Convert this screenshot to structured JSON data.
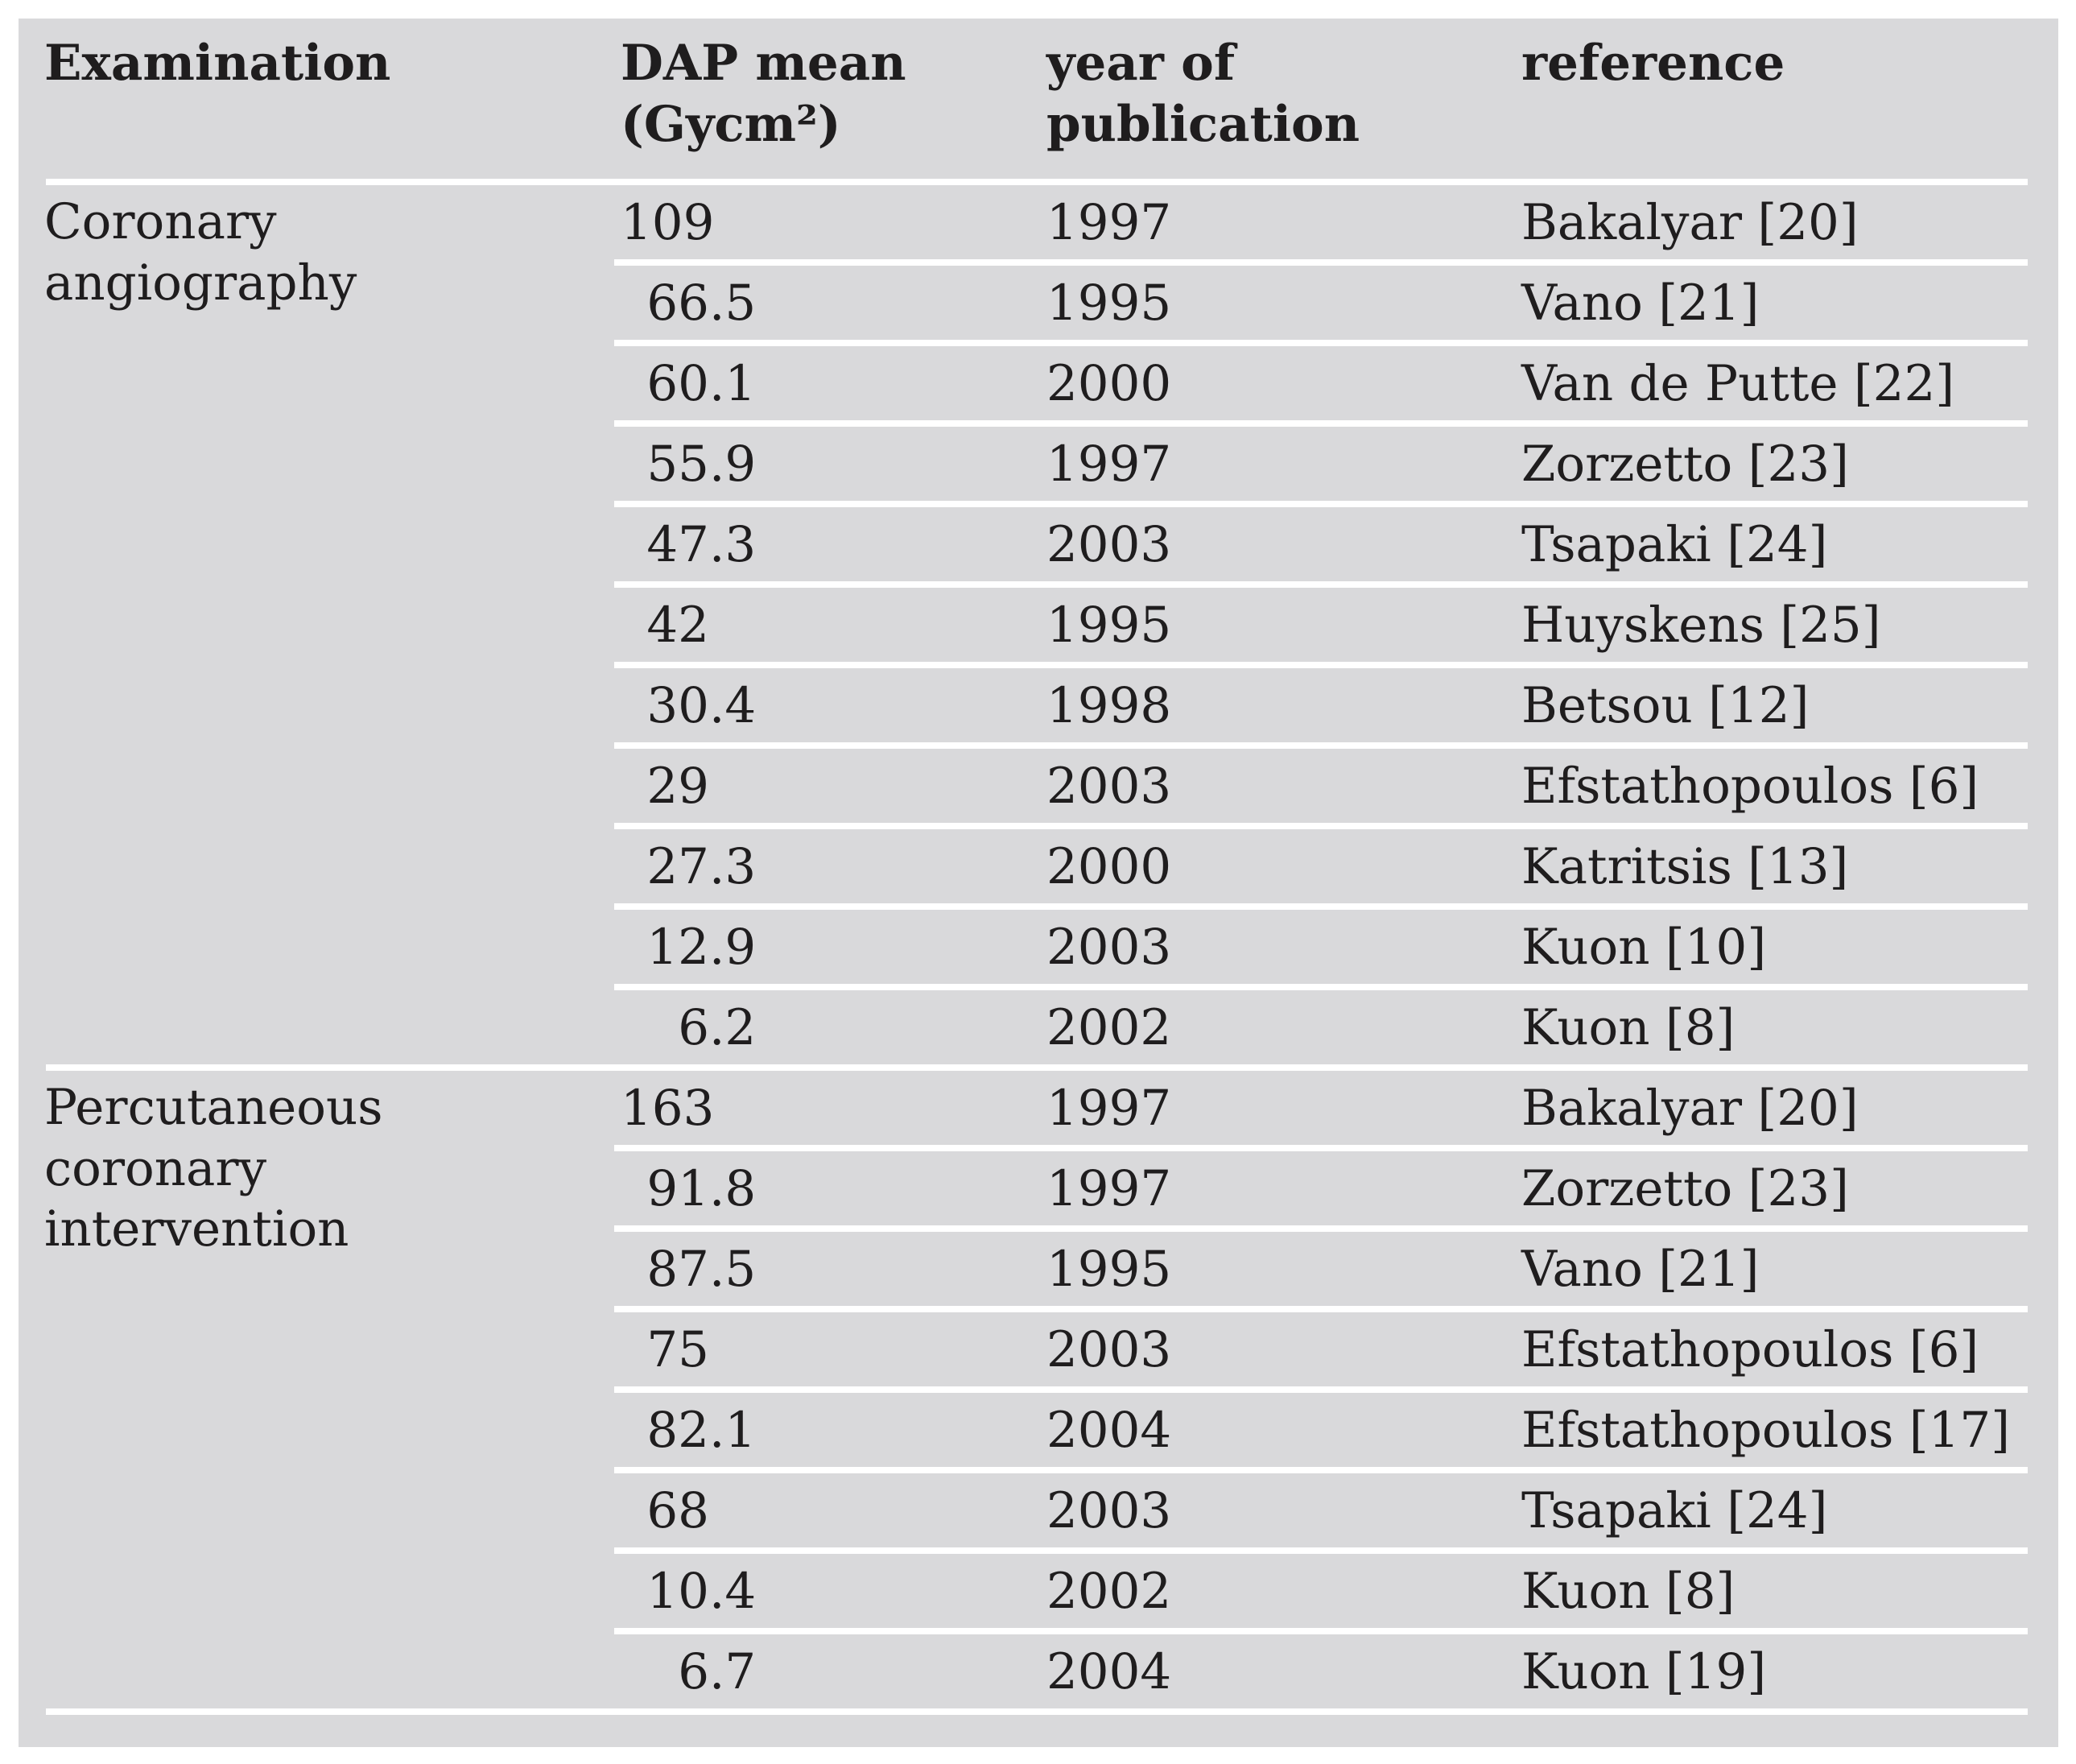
{
  "page": {
    "background": "#ffffff",
    "panel_background": "#d9d9db",
    "text_color": "#1f1d1e",
    "separator_color": "#ffffff"
  },
  "table": {
    "headers": {
      "examination": "Examination",
      "dap": "DAP mean\n(Gycm²)",
      "year": "year of\npublication",
      "reference": "reference"
    },
    "groups": [
      {
        "examination": "Coronary angiography",
        "rows": [
          {
            "dap": "109",
            "year": "1997",
            "reference": "Bakalyar [20]"
          },
          {
            "dap": "66.5",
            "year": "1995",
            "reference": "Vano [21]"
          },
          {
            "dap": "60.1",
            "year": "2000",
            "reference": "Van de Putte [22]"
          },
          {
            "dap": "55.9",
            "year": "1997",
            "reference": "Zorzetto [23]"
          },
          {
            "dap": "47.3",
            "year": "2003",
            "reference": "Tsapaki [24]"
          },
          {
            "dap": "42",
            "year": "1995",
            "reference": "Huyskens [25]"
          },
          {
            "dap": "30.4",
            "year": "1998",
            "reference": "Betsou [12]"
          },
          {
            "dap": "29",
            "year": "2003",
            "reference": "Efstathopoulos [6]"
          },
          {
            "dap": "27.3",
            "year": "2000",
            "reference": "Katritsis [13]"
          },
          {
            "dap": "12.9",
            "year": "2003",
            "reference": "Kuon [10]"
          },
          {
            "dap": "6.2",
            "year": "2002",
            "reference": "Kuon [8]"
          }
        ]
      },
      {
        "examination": "Percutaneous coronary intervention",
        "rows": [
          {
            "dap": "163",
            "year": "1997",
            "reference": "Bakalyar [20]"
          },
          {
            "dap": "91.8",
            "year": "1997",
            "reference": "Zorzetto [23]"
          },
          {
            "dap": "87.5",
            "year": "1995",
            "reference": "Vano [21]"
          },
          {
            "dap": "75",
            "year": "2003",
            "reference": "Efstathopoulos [6]"
          },
          {
            "dap": "82.1",
            "year": "2004",
            "reference": "Efstathopoulos [17]"
          },
          {
            "dap": "68",
            "year": "2003",
            "reference": "Tsapaki [24]"
          },
          {
            "dap": "10.4",
            "year": "2002",
            "reference": "Kuon [8]"
          },
          {
            "dap": "6.7",
            "year": "2004",
            "reference": "Kuon [19]"
          }
        ]
      }
    ]
  }
}
